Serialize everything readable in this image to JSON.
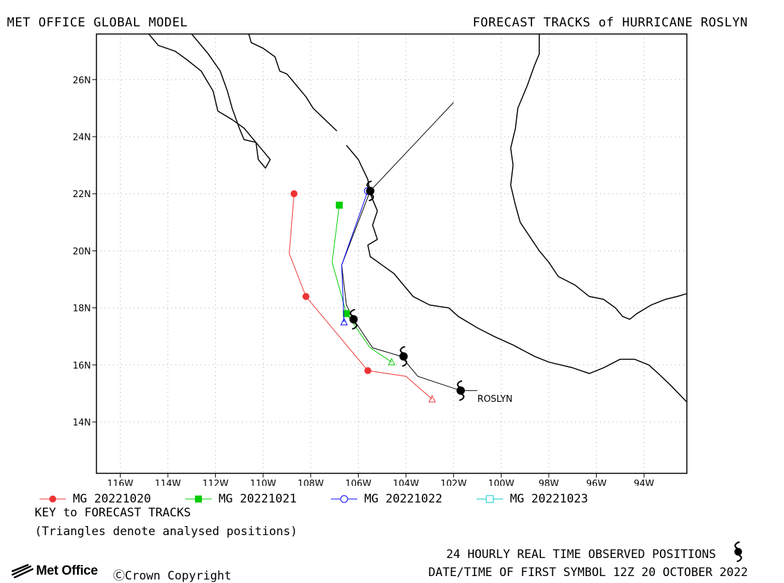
{
  "header": {
    "left": "MET OFFICE GLOBAL MODEL",
    "right": "FORECAST TRACKS of HURRICANE ROSLYN"
  },
  "map": {
    "lon_range": [
      -117,
      -92.2
    ],
    "lat_range": [
      12.2,
      27.6
    ],
    "grid": true,
    "lon_ticks": [
      {
        "lon": -116,
        "label": "116W"
      },
      {
        "lon": -114,
        "label": "114W"
      },
      {
        "lon": -112,
        "label": "112W"
      },
      {
        "lon": -110,
        "label": "110W"
      },
      {
        "lon": -108,
        "label": "108W"
      },
      {
        "lon": -106,
        "label": "106W"
      },
      {
        "lon": -104,
        "label": "104W"
      },
      {
        "lon": -102,
        "label": "102W"
      },
      {
        "lon": -100,
        "label": "100W"
      },
      {
        "lon": -98,
        "label": "98W"
      },
      {
        "lon": -96,
        "label": "96W"
      },
      {
        "lon": -94,
        "label": "94W"
      }
    ],
    "lat_ticks": [
      {
        "lat": 14,
        "label": "14N"
      },
      {
        "lat": 16,
        "label": "16N"
      },
      {
        "lat": 18,
        "label": "18N"
      },
      {
        "lat": 20,
        "label": "20N"
      },
      {
        "lat": 22,
        "label": "22N"
      },
      {
        "lat": 24,
        "label": "24N"
      },
      {
        "lat": 26,
        "label": "26N"
      }
    ],
    "storm_label": "ROSLYN",
    "storm_label_pos": {
      "lon": -101.0,
      "lat": 14.7
    },
    "coastlines": [
      [
        [
          -114.8,
          27.6
        ],
        [
          -114.4,
          27.2
        ],
        [
          -113.7,
          27.0
        ],
        [
          -113.2,
          26.7
        ],
        [
          -112.6,
          26.3
        ],
        [
          -112.1,
          25.6
        ],
        [
          -111.9,
          24.9
        ],
        [
          -111.3,
          24.6
        ],
        [
          -110.8,
          24.3
        ],
        [
          -110.3,
          23.8
        ],
        [
          -109.7,
          23.2
        ],
        [
          -109.9,
          22.9
        ],
        [
          -110.2,
          23.2
        ],
        [
          -110.3,
          23.8
        ],
        [
          -110.8,
          23.9
        ],
        [
          -111.0,
          24.3
        ],
        [
          -111.3,
          25.0
        ],
        [
          -111.5,
          25.6
        ],
        [
          -111.8,
          26.3
        ],
        [
          -112.3,
          26.9
        ],
        [
          -112.9,
          27.5
        ],
        [
          -113.0,
          27.6
        ]
      ],
      [
        [
          -110.6,
          27.6
        ],
        [
          -110.5,
          27.3
        ],
        [
          -110.0,
          27.1
        ],
        [
          -109.5,
          26.8
        ],
        [
          -109.3,
          26.3
        ],
        [
          -109.0,
          26.2
        ],
        [
          -108.6,
          25.8
        ],
        [
          -108.2,
          25.4
        ],
        [
          -107.9,
          25.0
        ],
        [
          -107.4,
          24.6
        ],
        [
          -106.9,
          24.2
        ]
      ],
      [
        [
          -106.5,
          23.7
        ],
        [
          -106.0,
          23.2
        ],
        [
          -105.6,
          22.5
        ],
        [
          -105.5,
          22.0
        ],
        [
          -105.2,
          21.4
        ],
        [
          -105.4,
          20.9
        ],
        [
          -105.2,
          20.4
        ],
        [
          -105.6,
          20.2
        ],
        [
          -105.5,
          19.8
        ],
        [
          -105.0,
          19.5
        ],
        [
          -104.5,
          19.2
        ],
        [
          -104.2,
          18.9
        ],
        [
          -103.7,
          18.4
        ],
        [
          -103.0,
          18.1
        ],
        [
          -102.2,
          18.0
        ],
        [
          -101.8,
          17.7
        ],
        [
          -101.0,
          17.3
        ],
        [
          -100.3,
          17.0
        ],
        [
          -99.5,
          16.7
        ],
        [
          -98.6,
          16.3
        ],
        [
          -98.0,
          16.1
        ],
        [
          -97.0,
          15.9
        ],
        [
          -96.3,
          15.7
        ],
        [
          -95.7,
          15.9
        ],
        [
          -95.0,
          16.2
        ],
        [
          -94.4,
          16.2
        ],
        [
          -93.8,
          16.0
        ],
        [
          -93.4,
          15.7
        ],
        [
          -92.9,
          15.3
        ],
        [
          -92.2,
          14.7
        ]
      ],
      [
        [
          -98.4,
          27.6
        ],
        [
          -98.4,
          26.9
        ],
        [
          -98.6,
          26.5
        ],
        [
          -98.9,
          25.8
        ],
        [
          -99.3,
          25.0
        ],
        [
          -99.4,
          24.3
        ],
        [
          -99.6,
          23.6
        ],
        [
          -99.5,
          23.0
        ],
        [
          -99.6,
          22.3
        ],
        [
          -99.4,
          21.6
        ],
        [
          -99.2,
          21.0
        ],
        [
          -98.8,
          20.5
        ],
        [
          -98.4,
          20.0
        ],
        [
          -98.0,
          19.6
        ],
        [
          -97.6,
          19.1
        ],
        [
          -96.9,
          18.8
        ],
        [
          -96.3,
          18.4
        ],
        [
          -95.7,
          18.3
        ],
        [
          -95.2,
          18.0
        ],
        [
          -94.9,
          17.7
        ],
        [
          -94.6,
          17.6
        ],
        [
          -94.3,
          17.8
        ],
        [
          -93.7,
          18.1
        ],
        [
          -93.1,
          18.3
        ],
        [
          -92.6,
          18.4
        ],
        [
          -92.2,
          18.5
        ]
      ]
    ]
  },
  "chart_data": {
    "type": "scatter",
    "title": "FORECAST TRACKS of HURRICANE ROSLYN",
    "xlabel": "",
    "ylabel": "",
    "xlim": [
      -117,
      -92.2
    ],
    "ylim": [
      12.2,
      27.6
    ],
    "series": [
      {
        "name": "MG 20221020",
        "color": "#ee3333",
        "marker": "circle",
        "points": [
          [
            -102.9,
            14.8
          ],
          [
            -104.0,
            15.6
          ],
          [
            -105.6,
            15.8
          ],
          [
            -108.2,
            18.4
          ],
          [
            -108.9,
            19.9
          ],
          [
            -108.7,
            22.0
          ]
        ],
        "markers": [
          [
            -105.6,
            15.8
          ],
          [
            -108.2,
            18.4
          ],
          [
            -108.7,
            22.0
          ]
        ],
        "analysed": [
          [
            -102.9,
            14.8
          ]
        ]
      },
      {
        "name": "MG 20221021",
        "color": "#00cc00",
        "marker": "square",
        "points": [
          [
            -104.6,
            16.1
          ],
          [
            -105.5,
            16.6
          ],
          [
            -106.5,
            17.8
          ],
          [
            -107.1,
            19.6
          ],
          [
            -106.8,
            21.6
          ]
        ],
        "markers": [
          [
            -106.5,
            17.8
          ],
          [
            -106.8,
            21.6
          ]
        ],
        "analysed": [
          [
            -104.6,
            16.1
          ]
        ]
      },
      {
        "name": "MG 20221022",
        "color": "#0000ff",
        "marker": "circle-open",
        "points": [
          [
            -106.6,
            17.5
          ],
          [
            -106.7,
            19.5
          ],
          [
            -105.6,
            22.1
          ]
        ],
        "markers": [
          [
            -105.6,
            22.1
          ]
        ],
        "analysed": [
          [
            -106.6,
            17.5
          ]
        ]
      },
      {
        "name": "MG 20221023",
        "color": "#00c8c8",
        "marker": "square-open",
        "points": [],
        "markers": [],
        "analysed": []
      }
    ],
    "observed": {
      "name": "24 HOURLY REAL TIME OBSERVED POSITIONS",
      "color": "#000000",
      "points": [
        [
          -101.0,
          15.1
        ],
        [
          -101.7,
          15.1
        ],
        [
          -103.5,
          15.6
        ],
        [
          -104.2,
          16.3
        ],
        [
          -105.4,
          16.6
        ],
        [
          -106.2,
          17.6
        ],
        [
          -106.5,
          18.1
        ],
        [
          -106.7,
          19.5
        ],
        [
          -105.5,
          22.1
        ],
        [
          -102.0,
          25.2
        ]
      ],
      "symbols": [
        [
          -101.7,
          15.1
        ],
        [
          -104.1,
          16.3
        ],
        [
          -106.2,
          17.6
        ],
        [
          -105.5,
          22.1
        ]
      ]
    }
  },
  "legend": {
    "items": [
      {
        "label": "MG 20221020",
        "color": "#ee3333",
        "marker": "circle"
      },
      {
        "label": "MG 20221021",
        "color": "#00cc00",
        "marker": "square"
      },
      {
        "label": "MG 20221022",
        "color": "#0000ff",
        "marker": "circle-open"
      },
      {
        "label": "MG 20221023",
        "color": "#00c8c8",
        "marker": "square-open"
      }
    ]
  },
  "key": {
    "title": "KEY to FORECAST TRACKS",
    "note": "(Triangles denote analysed positions)"
  },
  "footer": {
    "observed": "24 HOURLY REAL TIME OBSERVED POSITIONS",
    "first_symbol": "DATE/TIME OF FIRST SYMBOL 12Z 20 OCTOBER 2022",
    "logo": "Met Office",
    "copyright": "ⒸCrown Copyright"
  }
}
